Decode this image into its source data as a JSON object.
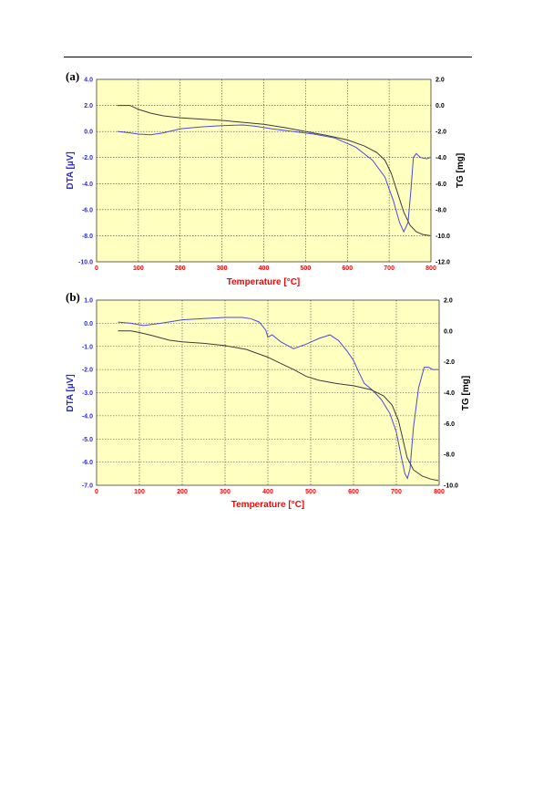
{
  "chart_data": [
    {
      "panel_label": "(a)",
      "type": "line",
      "xlabel": "Temperature  [°C]",
      "ylabel_left": "DTA  [µV]",
      "ylabel_right": "TG  [mg]",
      "xlim": [
        0,
        800
      ],
      "ylim_left": [
        -10,
        4
      ],
      "ylim_right": [
        -12,
        2
      ],
      "x_ticks": [
        "0",
        "100",
        "200",
        "300",
        "400",
        "500",
        "600",
        "700",
        "800"
      ],
      "y_left_ticks": [
        "4.0",
        "2.0",
        "0.0",
        "-2.0",
        "-4.0",
        "-6.0",
        "-8.0",
        "-10.0"
      ],
      "y_right_ticks": [
        "2.0",
        "0.0",
        "-2.0",
        "-4.0",
        "-6.0",
        "-8.0",
        "-10.0",
        "-12.0"
      ],
      "grid": true,
      "background": "#ffffc0",
      "colors": {
        "dta": "#4b4bd8",
        "tg": "#3c3c3c",
        "x_axis": "#ff0000",
        "left_axis": "#2b2bd8",
        "right_axis": "#000000"
      },
      "series": [
        {
          "axis": "left",
          "points": [
            [
              50,
              0.0
            ],
            [
              80,
              -0.1
            ],
            [
              100,
              -0.2
            ],
            [
              130,
              -0.25
            ],
            [
              160,
              -0.1
            ],
            [
              200,
              0.2
            ],
            [
              250,
              0.35
            ],
            [
              300,
              0.45
            ],
            [
              350,
              0.5
            ],
            [
              380,
              0.4
            ],
            [
              420,
              0.2
            ],
            [
              470,
              0.0
            ],
            [
              520,
              -0.2
            ],
            [
              570,
              -0.5
            ],
            [
              620,
              -1.2
            ],
            [
              660,
              -2.2
            ],
            [
              690,
              -3.5
            ],
            [
              710,
              -5.3
            ],
            [
              725,
              -7.0
            ],
            [
              735,
              -7.7
            ],
            [
              745,
              -7.0
            ],
            [
              752,
              -4.5
            ],
            [
              758,
              -2.0
            ],
            [
              765,
              -1.7
            ],
            [
              775,
              -2.0
            ],
            [
              790,
              -2.1
            ],
            [
              798,
              -2.0
            ]
          ]
        },
        {
          "axis": "right",
          "points": [
            [
              50,
              0.0
            ],
            [
              80,
              0.0
            ],
            [
              100,
              -0.3
            ],
            [
              130,
              -0.6
            ],
            [
              160,
              -0.8
            ],
            [
              200,
              -0.95
            ],
            [
              250,
              -1.05
            ],
            [
              300,
              -1.15
            ],
            [
              350,
              -1.3
            ],
            [
              400,
              -1.45
            ],
            [
              450,
              -1.7
            ],
            [
              500,
              -2.0
            ],
            [
              550,
              -2.3
            ],
            [
              600,
              -2.65
            ],
            [
              640,
              -3.1
            ],
            [
              670,
              -3.6
            ],
            [
              690,
              -4.2
            ],
            [
              705,
              -5.2
            ],
            [
              720,
              -6.7
            ],
            [
              735,
              -8.2
            ],
            [
              750,
              -9.2
            ],
            [
              765,
              -9.7
            ],
            [
              780,
              -9.9
            ],
            [
              798,
              -10.0
            ]
          ]
        }
      ]
    },
    {
      "panel_label": "(b)",
      "type": "line",
      "xlabel": "Temperature  [°C]",
      "ylabel_left": "DTA  [µV]",
      "ylabel_right": "TG  [mg]",
      "xlim": [
        0,
        800
      ],
      "ylim_left": [
        -7,
        1
      ],
      "ylim_right": [
        -10,
        2
      ],
      "x_ticks": [
        "0",
        "100",
        "200",
        "300",
        "400",
        "500",
        "600",
        "700",
        "800"
      ],
      "y_left_ticks": [
        "1.0",
        "0.0",
        "-1.0",
        "-2.0",
        "-3.0",
        "-4.0",
        "-5.0",
        "-6.0",
        "-7.0"
      ],
      "y_right_ticks": [
        "2.0",
        "0.0",
        "-2.0",
        "-4.0",
        "-6.0",
        "-8.0",
        "-10.0"
      ],
      "grid": true,
      "background": "#ffffc0",
      "colors": {
        "dta": "#4b4bd8",
        "tg": "#3c3c3c",
        "x_axis": "#ff0000",
        "left_axis": "#2b2bd8",
        "right_axis": "#000000"
      },
      "series": [
        {
          "axis": "left",
          "points": [
            [
              50,
              0.05
            ],
            [
              80,
              0.0
            ],
            [
              110,
              -0.1
            ],
            [
              150,
              0.0
            ],
            [
              200,
              0.15
            ],
            [
              250,
              0.2
            ],
            [
              300,
              0.25
            ],
            [
              340,
              0.25
            ],
            [
              360,
              0.2
            ],
            [
              380,
              0.05
            ],
            [
              395,
              -0.3
            ],
            [
              400,
              -0.6
            ],
            [
              410,
              -0.5
            ],
            [
              430,
              -0.8
            ],
            [
              460,
              -1.1
            ],
            [
              490,
              -0.9
            ],
            [
              520,
              -0.65
            ],
            [
              545,
              -0.5
            ],
            [
              565,
              -0.75
            ],
            [
              585,
              -1.2
            ],
            [
              600,
              -1.6
            ],
            [
              612,
              -2.1
            ],
            [
              625,
              -2.6
            ],
            [
              645,
              -2.9
            ],
            [
              665,
              -3.3
            ],
            [
              685,
              -3.9
            ],
            [
              700,
              -4.7
            ],
            [
              712,
              -5.8
            ],
            [
              720,
              -6.5
            ],
            [
              726,
              -6.7
            ],
            [
              732,
              -6.3
            ],
            [
              740,
              -4.5
            ],
            [
              752,
              -2.8
            ],
            [
              765,
              -1.9
            ],
            [
              775,
              -1.9
            ],
            [
              785,
              -2.0
            ],
            [
              798,
              -2.0
            ]
          ]
        },
        {
          "axis": "right",
          "points": [
            [
              50,
              0.0
            ],
            [
              80,
              0.0
            ],
            [
              100,
              -0.1
            ],
            [
              130,
              -0.3
            ],
            [
              170,
              -0.6
            ],
            [
              200,
              -0.7
            ],
            [
              250,
              -0.8
            ],
            [
              300,
              -0.95
            ],
            [
              350,
              -1.2
            ],
            [
              400,
              -1.7
            ],
            [
              430,
              -2.1
            ],
            [
              460,
              -2.5
            ],
            [
              490,
              -2.95
            ],
            [
              520,
              -3.2
            ],
            [
              560,
              -3.4
            ],
            [
              600,
              -3.55
            ],
            [
              640,
              -3.8
            ],
            [
              670,
              -4.2
            ],
            [
              690,
              -4.8
            ],
            [
              705,
              -5.8
            ],
            [
              715,
              -7.0
            ],
            [
              725,
              -8.2
            ],
            [
              740,
              -9.0
            ],
            [
              760,
              -9.4
            ],
            [
              780,
              -9.6
            ],
            [
              798,
              -9.7
            ]
          ]
        }
      ]
    }
  ]
}
